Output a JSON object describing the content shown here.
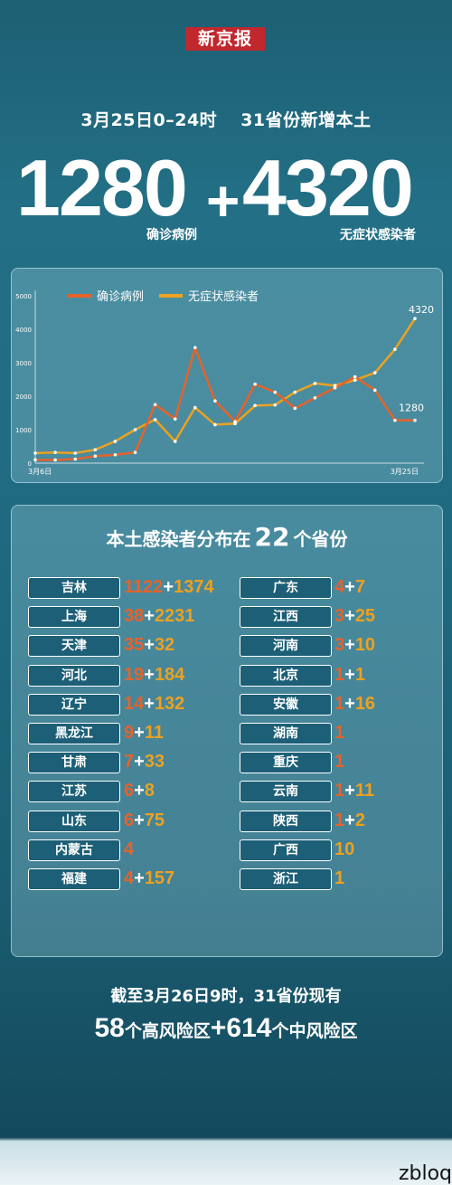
{
  "brand": "新京报",
  "headline": {
    "date": "3月25日0–24时",
    "scope": "31省份新增本土"
  },
  "summary": {
    "confirmed": "1280",
    "plus": "+",
    "asymptomatic": "4320",
    "confirmed_label": "确诊病例",
    "asymptomatic_label": "无症状感染者"
  },
  "colors": {
    "confirmed": "#e5632b",
    "asymptomatic": "#eda11f",
    "background": "#1f6a80"
  },
  "chart_data": {
    "type": "line",
    "x": [
      "3月6日",
      "3月7日",
      "3月8日",
      "3月9日",
      "3月10日",
      "3月11日",
      "3月12日",
      "3月13日",
      "3月14日",
      "3月15日",
      "3月16日",
      "3月17日",
      "3月18日",
      "3月19日",
      "3月20日",
      "3月21日",
      "3月22日",
      "3月23日",
      "3月24日",
      "3月25日"
    ],
    "x_tick_labels": [
      "3月6日",
      "3月25日"
    ],
    "series": [
      {
        "name": "确诊病例",
        "values": [
          100,
          95,
          120,
          210,
          250,
          320,
          1750,
          1320,
          3450,
          1860,
          1240,
          2360,
          2120,
          1640,
          1950,
          2250,
          2580,
          2180,
          1280,
          1280
        ]
      },
      {
        "name": "无症状感染者",
        "values": [
          300,
          320,
          300,
          400,
          650,
          1000,
          1300,
          650,
          1660,
          1150,
          1180,
          1720,
          1740,
          2120,
          2380,
          2320,
          2480,
          2700,
          3400,
          4320
        ]
      }
    ],
    "ylim": [
      0,
      5000
    ],
    "yticks": [
      "0",
      "1000",
      "2000",
      "3000",
      "4000",
      "5000"
    ],
    "end_labels": {
      "asymptomatic": "4320",
      "confirmed": "1280"
    },
    "legend": "top-left",
    "grid": false
  },
  "distribution": {
    "title_pre": "本土感染者分布在",
    "count": "22",
    "title_post": "个省份",
    "left": [
      {
        "name": "吉林",
        "confirmed": "1122",
        "asymptomatic": "1374"
      },
      {
        "name": "上海",
        "confirmed": "38",
        "asymptomatic": "2231"
      },
      {
        "name": "天津",
        "confirmed": "35",
        "asymptomatic": "32"
      },
      {
        "name": "河北",
        "confirmed": "19",
        "asymptomatic": "184"
      },
      {
        "name": "辽宁",
        "confirmed": "14",
        "asymptomatic": "132"
      },
      {
        "name": "黑龙江",
        "confirmed": "9",
        "asymptomatic": "11"
      },
      {
        "name": "甘肃",
        "confirmed": "7",
        "asymptomatic": "33"
      },
      {
        "name": "江苏",
        "confirmed": "6",
        "asymptomatic": "8"
      },
      {
        "name": "山东",
        "confirmed": "6",
        "asymptomatic": "75"
      },
      {
        "name": "内蒙古",
        "confirmed": "4",
        "asymptomatic": ""
      },
      {
        "name": "福建",
        "confirmed": "4",
        "asymptomatic": "157"
      }
    ],
    "right": [
      {
        "name": "广东",
        "confirmed": "4",
        "asymptomatic": "7"
      },
      {
        "name": "江西",
        "confirmed": "3",
        "asymptomatic": "25"
      },
      {
        "name": "河南",
        "confirmed": "3",
        "asymptomatic": "10"
      },
      {
        "name": "北京",
        "confirmed": "1",
        "asymptomatic": "1"
      },
      {
        "name": "安徽",
        "confirmed": "1",
        "asymptomatic": "16"
      },
      {
        "name": "湖南",
        "confirmed": "1",
        "asymptomatic": ""
      },
      {
        "name": "重庆",
        "confirmed": "1",
        "asymptomatic": ""
      },
      {
        "name": "云南",
        "confirmed": "1",
        "asymptomatic": "11"
      },
      {
        "name": "陕西",
        "confirmed": "1",
        "asymptomatic": "2"
      },
      {
        "name": "广西",
        "confirmed": "",
        "asymptomatic": "10"
      },
      {
        "name": "浙江",
        "confirmed": "",
        "asymptomatic": "1"
      }
    ]
  },
  "footer": {
    "line1": "截至3月26日9时，31省份现有",
    "high_count": "58",
    "high_label": "个高风险区",
    "plus": "+",
    "mid_count": "614",
    "mid_label": "个中风险区"
  },
  "watermark": "zbloq"
}
